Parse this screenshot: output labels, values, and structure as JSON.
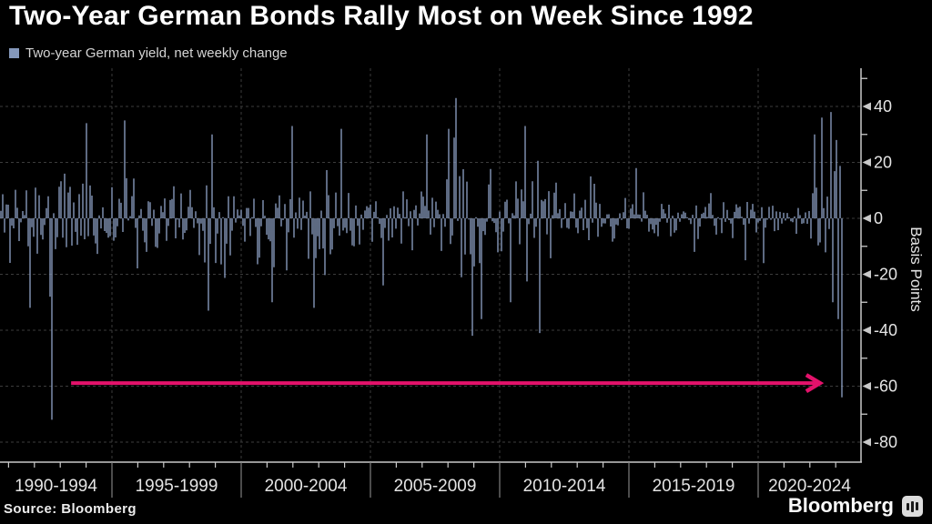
{
  "title": "Two-Year German Bonds Rally Most on Week Since 1992",
  "legend": {
    "label": "Two-year German yield, net weekly change",
    "swatch_color": "#8498BA"
  },
  "footer": {
    "source": "Source: Bloomberg",
    "brand": "Bloomberg"
  },
  "colors": {
    "background": "#000000",
    "bars": "#8A9DC0",
    "grid": "#3C3C3C",
    "axis": "#C9C9C9",
    "tick_text": "#E4E4E4",
    "title_text": "#FFFFFF",
    "legend_text": "#D4D4D4",
    "arrow": "#E4126B",
    "separator": "#7E7E7E"
  },
  "chart_data": {
    "type": "bar",
    "series_name": "Two-year German yield, net weekly change",
    "unit": "basis points",
    "ylabel": "Basis Points",
    "y_ticks": [
      40,
      20,
      0,
      -20,
      -40,
      -60,
      -80
    ],
    "y_minor_ticks": [
      50,
      30,
      10,
      -10,
      -30,
      -50,
      -70
    ],
    "ylim": [
      -87,
      53
    ],
    "x_period_labels": [
      "1990-1994",
      "1995-1999",
      "2000-2004",
      "2005-2009",
      "2010-2014",
      "2015-2019",
      "2020-2024"
    ],
    "x_period_boundaries_years": [
      1995,
      2000,
      2005,
      2010,
      2015,
      2020
    ],
    "x_range_years": [
      1990.7,
      2023.25
    ],
    "grid": "dashed",
    "legend_position": "top-left",
    "axis_position": "right",
    "record_low_1992_bp": -72,
    "latest_week_2023_bp": -64,
    "annotation_arrow": {
      "start_year": 1993.42,
      "end_year": 2022.39,
      "y_bp": -58.9,
      "color": "#E4126B",
      "direction": "right"
    },
    "key_events": [
      [
        1991.83,
        -32
      ],
      [
        1992.58,
        -28
      ],
      [
        1992.68,
        -72
      ],
      [
        1994.0,
        34
      ],
      [
        1995.5,
        35
      ],
      [
        1998.75,
        -33
      ],
      [
        1998.9,
        30
      ],
      [
        2001.2,
        -30
      ],
      [
        2001.94,
        33
      ],
      [
        2002.8,
        -32
      ],
      [
        2003.85,
        32
      ],
      [
        2005.5,
        -24
      ],
      [
        2007.2,
        30
      ],
      [
        2008.0,
        32
      ],
      [
        2008.31,
        43
      ],
      [
        2008.94,
        -42
      ],
      [
        2009.33,
        -36
      ],
      [
        2010.4,
        -30
      ],
      [
        2011.0,
        33
      ],
      [
        2011.58,
        -41
      ],
      [
        2013.5,
        15
      ],
      [
        2015.3,
        18
      ],
      [
        2017.5,
        -12
      ],
      [
        2019.5,
        -15
      ],
      [
        2020.2,
        -16
      ],
      [
        2022.2,
        30
      ],
      [
        2022.45,
        36
      ],
      [
        2022.8,
        38
      ],
      [
        2022.9,
        -30
      ],
      [
        2023.05,
        28
      ],
      [
        2023.1,
        -36
      ],
      [
        2023.24,
        -64
      ]
    ],
    "volatility_by_year": {
      "1990": 9,
      "1991": 9,
      "1992": 10,
      "1993": 10,
      "1994": 9,
      "1995": 8,
      "1996": 7,
      "1997": 7,
      "1998": 8,
      "1999": 7.5,
      "2000": 8,
      "2001": 8.5,
      "2002": 8.5,
      "2003": 8,
      "2004": 7,
      "2005": 5.5,
      "2006": 6,
      "2007": 7.5,
      "2008": 11,
      "2009": 8.5,
      "2010": 8.5,
      "2011": 9,
      "2012": 6.5,
      "2013": 5,
      "2014": 4,
      "2015": 4.5,
      "2016": 4,
      "2017": 3,
      "2018": 3.5,
      "2019": 4,
      "2020": 3.5,
      "2021": 2.5,
      "2022": 9,
      "2023": 10
    },
    "seed": 11
  }
}
